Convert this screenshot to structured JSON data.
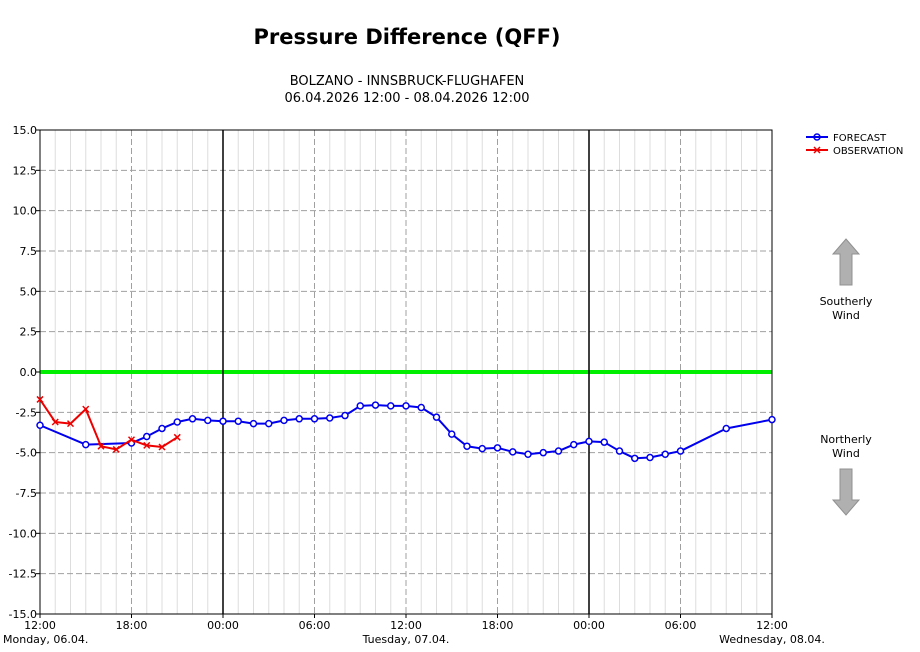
{
  "chart_data": {
    "type": "line",
    "title": "Pressure Difference (QFF)",
    "subtitle_lines": [
      "BOLZANO - INNSBRUCK-FLUGHAFEN",
      "06.04.2026 12:00 - 08.04.2026 12:00"
    ],
    "ylim": [
      -15,
      15
    ],
    "xlim": [
      0,
      48
    ],
    "y_ticks": [
      15,
      12.5,
      10,
      7.5,
      5,
      2.5,
      0,
      -2.5,
      -5,
      -7.5,
      -10,
      -12.5,
      -15
    ],
    "y_tick_labels": [
      "15.0",
      "12.5",
      "10.0",
      "7.5",
      "5.0",
      "2.5",
      "0.0",
      "-2.5",
      "-5.0",
      "-7.5",
      "-10.0",
      "-12.5",
      "-15.0"
    ],
    "x_ticks": [
      {
        "x": 0,
        "label": "12:00"
      },
      {
        "x": 6,
        "label": "18:00"
      },
      {
        "x": 12,
        "label": "00:00"
      },
      {
        "x": 18,
        "label": "06:00"
      },
      {
        "x": 24,
        "label": "12:00"
      },
      {
        "x": 30,
        "label": "18:00"
      },
      {
        "x": 36,
        "label": "00:00"
      },
      {
        "x": 42,
        "label": "06:00"
      },
      {
        "x": 48,
        "label": "12:00"
      }
    ],
    "day_labels": [
      {
        "x": 0,
        "label": "Monday, 06.04."
      },
      {
        "x": 24,
        "label": "Tuesday, 07.04."
      },
      {
        "x": 48,
        "label": "Wednesday, 08.04."
      }
    ],
    "midnight_lines": [
      12,
      36
    ],
    "zero_line_color": "#00ee00",
    "grid": true,
    "legend_position": "top-right",
    "series": [
      {
        "name": "FORECAST",
        "color": "#0000ee",
        "marker": "circle",
        "x": [
          0,
          3,
          6,
          7,
          8,
          9,
          10,
          11,
          12,
          13,
          14,
          15,
          16,
          17,
          18,
          19,
          20,
          21,
          22,
          23,
          24,
          25,
          26,
          27,
          28,
          29,
          30,
          31,
          32,
          33,
          34,
          35,
          36,
          37,
          38,
          39,
          40,
          41,
          42,
          45,
          48
        ],
        "y": [
          -3.3,
          -4.5,
          -4.4,
          -4.0,
          -3.5,
          -3.1,
          -2.9,
          -3.0,
          -3.05,
          -3.05,
          -3.2,
          -3.2,
          -3.0,
          -2.9,
          -2.9,
          -2.85,
          -2.7,
          -2.1,
          -2.05,
          -2.1,
          -2.1,
          -2.2,
          -2.8,
          -3.85,
          -4.6,
          -4.75,
          -4.7,
          -4.95,
          -5.1,
          -5.0,
          -4.9,
          -4.5,
          -4.3,
          -4.35,
          -4.9,
          -5.35,
          -5.3,
          -5.1,
          -4.9,
          -3.5,
          -2.95
        ]
      },
      {
        "name": "OBSERVATION",
        "color": "#ee0000",
        "marker": "x",
        "x": [
          0,
          1,
          2,
          3,
          4,
          5,
          6,
          7,
          8,
          9
        ],
        "y": [
          -1.7,
          -3.1,
          -3.2,
          -2.3,
          -4.6,
          -4.8,
          -4.2,
          -4.55,
          -4.65,
          -4.05
        ]
      }
    ]
  },
  "side_labels": {
    "southerly": [
      "Southerly",
      "Wind"
    ],
    "northerly": [
      "Northerly",
      "Wind"
    ]
  },
  "colors": {
    "arrow_fill": "#b0b0b0",
    "arrow_stroke": "#909090",
    "grid_major": "#a0a0a0",
    "grid_minor": "#dddddd"
  }
}
